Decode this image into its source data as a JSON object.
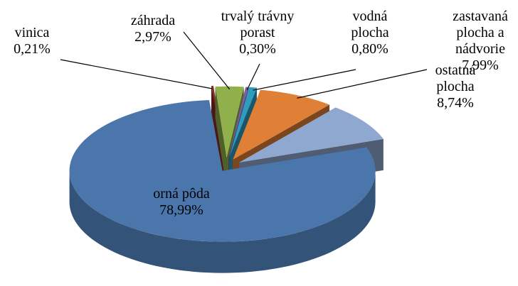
{
  "chart_data": {
    "type": "pie3d",
    "categories": [
      "vinica",
      "záhrada",
      "trvalý trávny porast",
      "vodná plocha",
      "zastavaná plocha a nádvorie",
      "ostatná plocha",
      "orná pôda"
    ],
    "values": [
      0.21,
      2.97,
      0.3,
      0.8,
      7.99,
      8.74,
      78.99
    ],
    "value_labels": [
      "0,21%",
      "2,97%",
      "0,30%",
      "0,80%",
      "7,99%",
      "8,74%",
      "78,99%"
    ],
    "colors": [
      "#8b2a2a",
      "#8fb04a",
      "#7a5fa0",
      "#2f9bbf",
      "#e07f36",
      "#8fa8d0",
      "#4a76ac"
    ]
  }
}
